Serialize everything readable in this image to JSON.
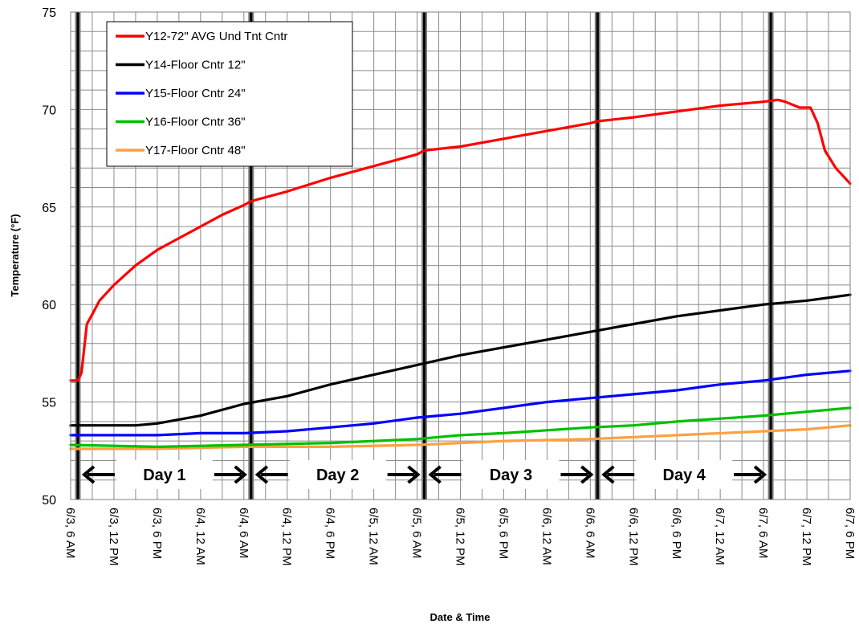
{
  "chart_data": {
    "type": "line",
    "xlabel": "Date & Time",
    "ylabel": "Temperature (°F)",
    "ylim": [
      50,
      75
    ],
    "yticks": [
      50,
      55,
      60,
      65,
      70,
      75
    ],
    "xlim": [
      "6/3 6:00",
      "6/7 18:00"
    ],
    "x_ticks": [
      "6/3, 6 AM",
      "6/3, 12 PM",
      "6/3, 6 PM",
      "6/4, 12 AM",
      "6/4, 6 AM",
      "6/4, 12 PM",
      "6/4, 6 PM",
      "6/5, 12 AM",
      "6/5, 6 AM",
      "6/5, 12 PM",
      "6/5, 6 PM",
      "6/6, 12 AM",
      "6/6, 6 AM",
      "6/6, 12 PM",
      "6/6, 6 PM",
      "6/7, 12 AM",
      "6/7, 6 AM",
      "6/7, 12 PM",
      "6/7, 6 PM"
    ],
    "grid": true,
    "legend_position": "top-left",
    "day_markers": [
      "6/3 7:00",
      "6/4 7:00",
      "6/5 7:00",
      "6/6 7:00",
      "6/7 7:00"
    ],
    "day_labels": [
      "Day 1",
      "Day 2",
      "Day 3",
      "Day 4"
    ],
    "series": [
      {
        "name": "Y12-72\" AVG Und Tnt Cntr",
        "color": "#ff0000",
        "points": [
          [
            "6/3 6:00",
            56.1
          ],
          [
            "6/3 7:00",
            56.1
          ],
          [
            "6/3 7:30",
            56.5
          ],
          [
            "6/3 8:15",
            59.0
          ],
          [
            "6/3 9:00",
            59.5
          ],
          [
            "6/3 10:00",
            60.2
          ],
          [
            "6/3 12:00",
            61.0
          ],
          [
            "6/3 15:00",
            62.0
          ],
          [
            "6/3 18:00",
            62.8
          ],
          [
            "6/3 21:00",
            63.4
          ],
          [
            "6/4 0:00",
            64.0
          ],
          [
            "6/4 3:00",
            64.6
          ],
          [
            "6/4 6:00",
            65.1
          ],
          [
            "6/4 7:00",
            65.3
          ],
          [
            "6/4 12:00",
            65.8
          ],
          [
            "6/4 18:00",
            66.5
          ],
          [
            "6/5 0:00",
            67.1
          ],
          [
            "6/5 6:00",
            67.7
          ],
          [
            "6/5 7:00",
            67.9
          ],
          [
            "6/5 12:00",
            68.1
          ],
          [
            "6/5 18:00",
            68.5
          ],
          [
            "6/6 0:00",
            68.9
          ],
          [
            "6/6 6:00",
            69.3
          ],
          [
            "6/6 7:00",
            69.4
          ],
          [
            "6/6 12:00",
            69.6
          ],
          [
            "6/6 18:00",
            69.9
          ],
          [
            "6/7 0:00",
            70.2
          ],
          [
            "6/7 6:00",
            70.4
          ],
          [
            "6/7 8:00",
            70.5
          ],
          [
            "6/7 9:00",
            70.4
          ],
          [
            "6/7 11:00",
            70.1
          ],
          [
            "6/7 12:30",
            70.1
          ],
          [
            "6/7 13:30",
            69.3
          ],
          [
            "6/7 14:30",
            67.9
          ],
          [
            "6/7 16:00",
            67.0
          ],
          [
            "6/7 18:00",
            66.2
          ]
        ]
      },
      {
        "name": "Y14-Floor Cntr 12\"",
        "color": "#000000",
        "points": [
          [
            "6/3 6:00",
            53.8
          ],
          [
            "6/3 12:00",
            53.8
          ],
          [
            "6/3 15:00",
            53.8
          ],
          [
            "6/3 18:00",
            53.9
          ],
          [
            "6/4 0:00",
            54.3
          ],
          [
            "6/4 6:00",
            54.9
          ],
          [
            "6/4 12:00",
            55.3
          ],
          [
            "6/4 18:00",
            55.9
          ],
          [
            "6/5 0:00",
            56.4
          ],
          [
            "6/5 6:00",
            56.9
          ],
          [
            "6/5 12:00",
            57.4
          ],
          [
            "6/5 18:00",
            57.8
          ],
          [
            "6/6 0:00",
            58.2
          ],
          [
            "6/6 6:00",
            58.6
          ],
          [
            "6/6 12:00",
            59.0
          ],
          [
            "6/6 18:00",
            59.4
          ],
          [
            "6/7 0:00",
            59.7
          ],
          [
            "6/7 6:00",
            60.0
          ],
          [
            "6/7 12:00",
            60.2
          ],
          [
            "6/7 18:00",
            60.5
          ]
        ]
      },
      {
        "name": "Y15-Floor Cntr 24\"",
        "color": "#0000ff",
        "points": [
          [
            "6/3 6:00",
            53.3
          ],
          [
            "6/3 18:00",
            53.3
          ],
          [
            "6/4 0:00",
            53.4
          ],
          [
            "6/4 6:00",
            53.4
          ],
          [
            "6/4 12:00",
            53.5
          ],
          [
            "6/4 18:00",
            53.7
          ],
          [
            "6/5 0:00",
            53.9
          ],
          [
            "6/5 6:00",
            54.2
          ],
          [
            "6/5 12:00",
            54.4
          ],
          [
            "6/5 18:00",
            54.7
          ],
          [
            "6/6 0:00",
            55.0
          ],
          [
            "6/6 6:00",
            55.2
          ],
          [
            "6/6 12:00",
            55.4
          ],
          [
            "6/6 18:00",
            55.6
          ],
          [
            "6/7 0:00",
            55.9
          ],
          [
            "6/7 6:00",
            56.1
          ],
          [
            "6/7 12:00",
            56.4
          ],
          [
            "6/7 18:00",
            56.6
          ]
        ]
      },
      {
        "name": "Y16-Floor Cntr 36\"",
        "color": "#00c000",
        "points": [
          [
            "6/3 6:00",
            52.8
          ],
          [
            "6/3 18:00",
            52.7
          ],
          [
            "6/4 6:00",
            52.8
          ],
          [
            "6/4 18:00",
            52.9
          ],
          [
            "6/5 6:00",
            53.1
          ],
          [
            "6/5 12:00",
            53.3
          ],
          [
            "6/5 18:00",
            53.4
          ],
          [
            "6/6 6:00",
            53.7
          ],
          [
            "6/6 12:00",
            53.8
          ],
          [
            "6/6 18:00",
            54.0
          ],
          [
            "6/7 6:00",
            54.3
          ],
          [
            "6/7 12:00",
            54.5
          ],
          [
            "6/7 18:00",
            54.7
          ]
        ]
      },
      {
        "name": "Y17-Floor Cntr 48\"",
        "color": "#ffa040",
        "points": [
          [
            "6/3 6:00",
            52.6
          ],
          [
            "6/3 18:00",
            52.6
          ],
          [
            "6/4 6:00",
            52.7
          ],
          [
            "6/4 18:00",
            52.7
          ],
          [
            "6/5 6:00",
            52.8
          ],
          [
            "6/5 12:00",
            52.9
          ],
          [
            "6/5 18:00",
            53.0
          ],
          [
            "6/6 6:00",
            53.1
          ],
          [
            "6/6 12:00",
            53.2
          ],
          [
            "6/6 18:00",
            53.3
          ],
          [
            "6/7 6:00",
            53.5
          ],
          [
            "6/7 12:00",
            53.6
          ],
          [
            "6/7 18:00",
            53.8
          ]
        ]
      }
    ]
  }
}
